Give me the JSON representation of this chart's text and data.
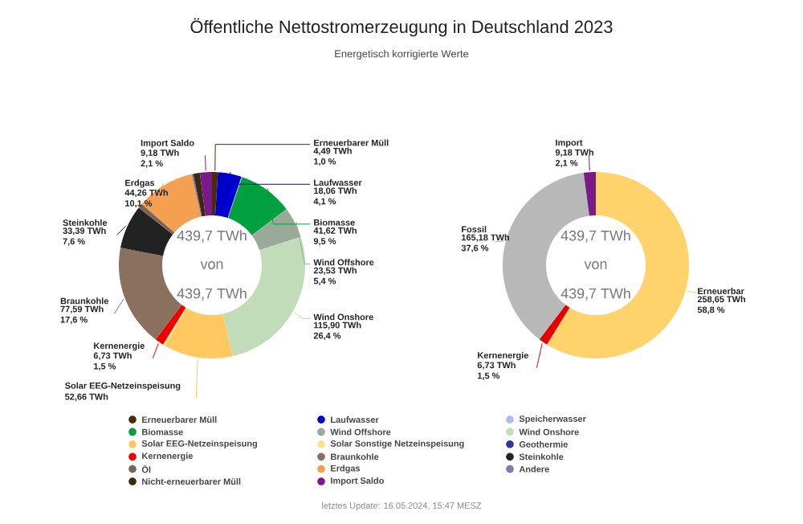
{
  "chart_data": [
    {
      "type": "donut",
      "title": "Öffentliche Nettostromerzeugung in Deutschland 2023",
      "subtitle": "Energetisch korrigierte Werte",
      "categories": [
        "Erneuerbarer Müll",
        "Laufwasser",
        "Speicherwasser",
        "Biomasse",
        "Wind Offshore",
        "Wind Onshore",
        "Solar EEG-Netzeinspeisung",
        "Solar Sonstige Netzeinspeisung",
        "Geothermie",
        "Kernenergie",
        "Braunkohle",
        "Steinkohle",
        "Öl",
        "Erdgas",
        "Andere",
        "Nicht-erneuerbarer Müll",
        "Import Saldo"
      ],
      "values": [
        4.49,
        18.06,
        0.6,
        41.62,
        23.53,
        115.9,
        52.66,
        1.8,
        null,
        6.73,
        77.59,
        33.39,
        3.6,
        44.26,
        1.34,
        5.0,
        9.18
      ],
      "colors": [
        "#4a2a0a",
        "#0000cc",
        "#aabbee",
        "#00a040",
        "#99aa99",
        "#c0dcb8",
        "#ffc860",
        "#ffe090",
        "#333399",
        "#ee0000",
        "#8b7060",
        "#222222",
        "#7a6550",
        "#f5a050",
        "#8877aa",
        "#3a2a10",
        "#7a1a8a"
      ],
      "value_labels": [
        "4,49 TWh 1,0 %",
        "18,06 TWh 4,1 %",
        null,
        "41,62 TWh 9,5 %",
        "23,53 TWh 5,4 %",
        "115,90 TWh 26,4 %",
        "52,66 TWh",
        null,
        null,
        "6,73 TWh 1,5 %",
        "77,59 TWh 17,6 %",
        "33,39 TWh 7,6 %",
        null,
        "44,26 TWh 10,1 %",
        null,
        null,
        "9,18 TWh 2,1 %"
      ],
      "annotations": [
        "439,7 TWh",
        "von",
        "439,7 TWh",
        "letztes Update: 16.05.2024, 15:47 MESZ"
      ],
      "legend": "bottom"
    },
    {
      "type": "donut",
      "categories": [
        "Erneuerbar",
        "Kernenergie",
        "Fossil",
        "Import"
      ],
      "values": [
        258.65,
        6.73,
        165.18,
        9.18
      ],
      "colors": [
        "#ffd36b",
        "#e50000",
        "#b8b8b8",
        "#7a1a8a"
      ],
      "value_labels": [
        "258,65 TWh 58,8 %",
        "6,73 TWh 1,5 %",
        "165,18 TWh 37,6 %",
        "9,18 TWh 2,1 %"
      ],
      "annotations": [
        "439,7 TWh",
        "von",
        "439,7 TWh"
      ]
    }
  ]
}
